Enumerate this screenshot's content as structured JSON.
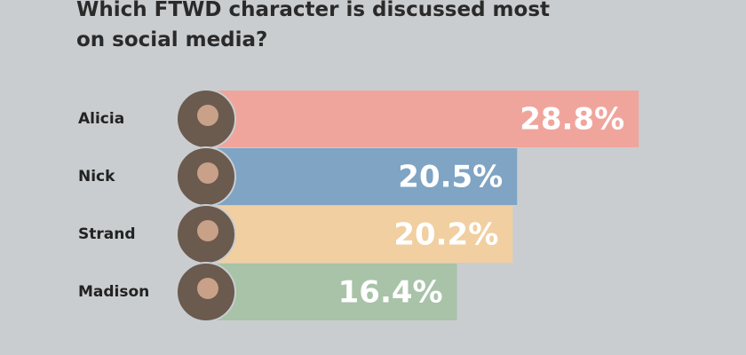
{
  "chart_data": {
    "type": "bar",
    "title": "Which FTWD character is discussed most on social media?",
    "categories": [
      "Alicia",
      "Nick",
      "Strand",
      "Madison"
    ],
    "values": [
      28.8,
      20.5,
      20.2,
      16.4
    ],
    "value_labels": [
      "28.8%",
      "20.5%",
      "20.2%",
      "16.4%"
    ],
    "colors": [
      "#f0a59c",
      "#7fa4c4",
      "#f1cfa1",
      "#a8c3a8"
    ]
  }
}
